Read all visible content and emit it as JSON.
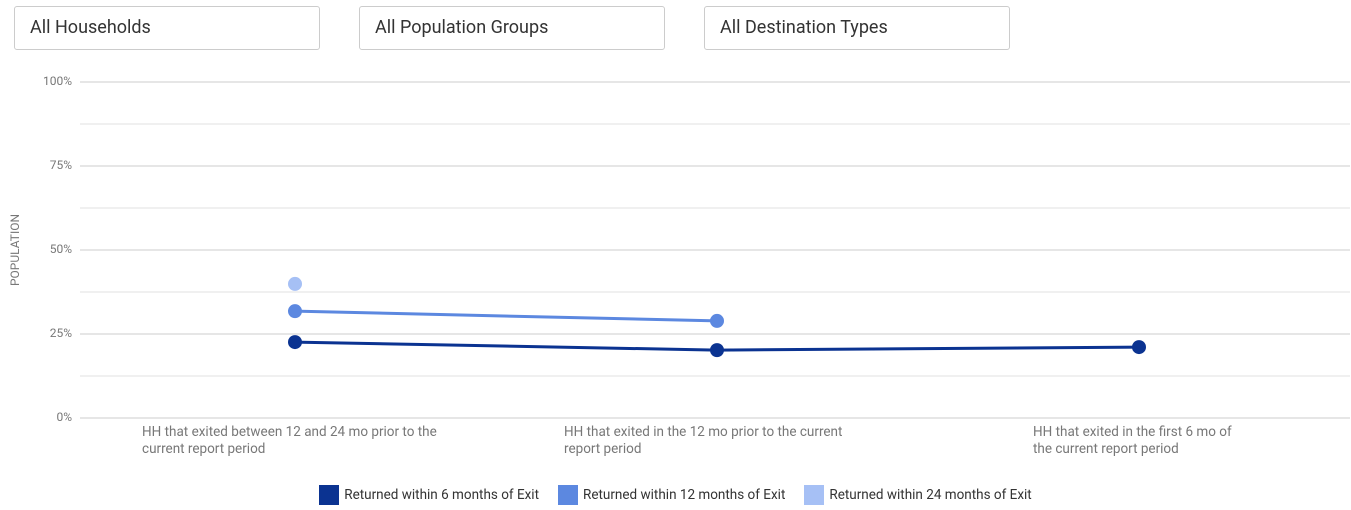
{
  "filters": [
    "All Households",
    "All Population Groups",
    "All Destination Types"
  ],
  "chart_data": {
    "type": "line",
    "ylabel": "POPULATION",
    "categories": [
      "HH that exited between 12 and 24 mo prior to the current report period",
      "HH that exited in the 12 mo prior to the current report period",
      "HH that exited in the first 6 mo of the current report period"
    ],
    "series": [
      {
        "name": "Returned within 6 months of Exit",
        "color": "#0b3391",
        "values": [
          22.6,
          20.2,
          21.1
        ]
      },
      {
        "name": "Returned within 12 months of Exit",
        "color": "#5c88e0",
        "values": [
          31.8,
          28.9,
          null
        ]
      },
      {
        "name": "Returned within 24 months of Exit",
        "color": "#a6c0f5",
        "values": [
          39.9,
          null,
          null
        ]
      }
    ],
    "ylim": [
      0,
      100
    ],
    "yticks": [
      {
        "value": 0,
        "label": "0%"
      },
      {
        "value": 25,
        "label": "25%"
      },
      {
        "value": 50,
        "label": "50%"
      },
      {
        "value": 75,
        "label": "75%"
      },
      {
        "value": 100,
        "label": "100%"
      }
    ],
    "minor_yticks": [
      12.5,
      37.5,
      62.5,
      87.5
    ],
    "grid": true,
    "legend": "bottom"
  }
}
